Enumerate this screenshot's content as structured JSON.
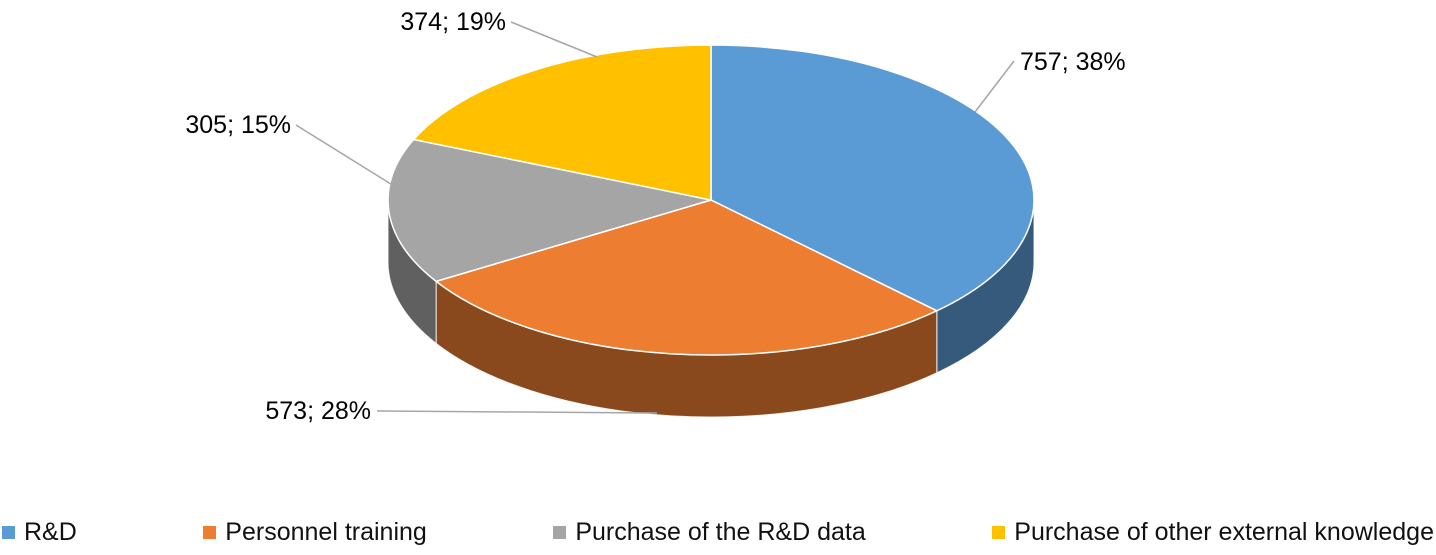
{
  "chart_data": {
    "type": "pie",
    "is_3d": true,
    "title": "",
    "categories": [
      "R&D",
      "Personnel training",
      "Purchase of the R&D data",
      "Purchase of other external knowledge"
    ],
    "values": [
      757,
      573,
      305,
      374
    ],
    "percentages": [
      38,
      28,
      15,
      19
    ],
    "data_labels": [
      "757; 38%",
      "573; 28%",
      "305; 15%",
      "374; 19%"
    ],
    "colors": [
      "#5B9BD5",
      "#ED7D31",
      "#A5A5A5",
      "#FFC000"
    ],
    "legend_position": "bottom",
    "start_angle_deg": 0,
    "direction": "clockwise",
    "leader_line_color": "#A6A6A6",
    "label_color": "#000000",
    "background": "#FFFFFF"
  },
  "legend": {
    "items": [
      {
        "label": "R&D",
        "color": "#5B9BD5"
      },
      {
        "label": "Personnel training",
        "color": "#ED7D31"
      },
      {
        "label": "Purchase of the R&D data",
        "color": "#A5A5A5"
      },
      {
        "label": "Purchase of other external knowledge",
        "color": "#FFC000"
      }
    ]
  }
}
